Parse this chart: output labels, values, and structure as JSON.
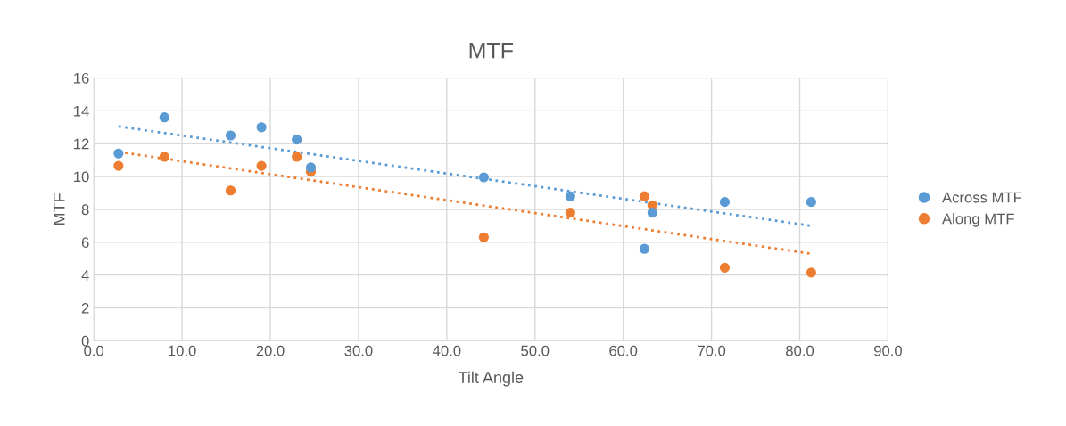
{
  "chart_data": {
    "type": "scatter",
    "title": "MTF",
    "xlabel": "Tilt Angle",
    "ylabel": "MTF",
    "xlim": [
      0,
      90
    ],
    "xticks": [
      {
        "value": 0,
        "label": "0.0"
      },
      {
        "value": 10,
        "label": "10.0"
      },
      {
        "value": 20,
        "label": "20.0"
      },
      {
        "value": 30,
        "label": "30.0"
      },
      {
        "value": 40,
        "label": "40.0"
      },
      {
        "value": 50,
        "label": "50.0"
      },
      {
        "value": 60,
        "label": "60.0"
      },
      {
        "value": 70,
        "label": "70.0"
      },
      {
        "value": 80,
        "label": "80.0"
      },
      {
        "value": 90,
        "label": "90.0"
      }
    ],
    "ylim": [
      0,
      16
    ],
    "yticks": [
      0,
      2,
      4,
      6,
      8,
      10,
      12,
      14,
      16
    ],
    "grid": true,
    "legend": "right",
    "marker": "circle",
    "series": [
      {
        "name": "Across MTF",
        "color": "#5b9bd5",
        "x": [
          2.8,
          8,
          15.5,
          19,
          23,
          24.6,
          44.2,
          54,
          62.4,
          63.3,
          71.5,
          81.3
        ],
        "values": [
          11.4,
          13.6,
          12.5,
          13,
          12.25,
          10.55,
          9.95,
          8.8,
          5.6,
          7.8,
          8.45,
          8.45
        ]
      },
      {
        "name": "Along MTF",
        "color": "#ed7d31",
        "x": [
          2.8,
          8,
          15.5,
          19,
          23,
          24.6,
          44.2,
          54,
          62.4,
          63.3,
          71.5,
          81.3
        ],
        "values": [
          10.65,
          11.2,
          9.15,
          10.65,
          11.2,
          10.3,
          6.3,
          7.8,
          8.8,
          8.25,
          4.45,
          4.15
        ]
      },
      {
        "type": "line",
        "color": "#5b9bd5",
        "line_style": "dotted",
        "marker": "none",
        "x": [
          2.8,
          81.3
        ],
        "values": [
          13.05,
          7.0
        ]
      },
      {
        "type": "line",
        "color": "#ed7d31",
        "line_style": "dotted",
        "marker": "none",
        "x": [
          2.8,
          81.3
        ],
        "values": [
          11.5,
          5.3
        ]
      }
    ]
  }
}
